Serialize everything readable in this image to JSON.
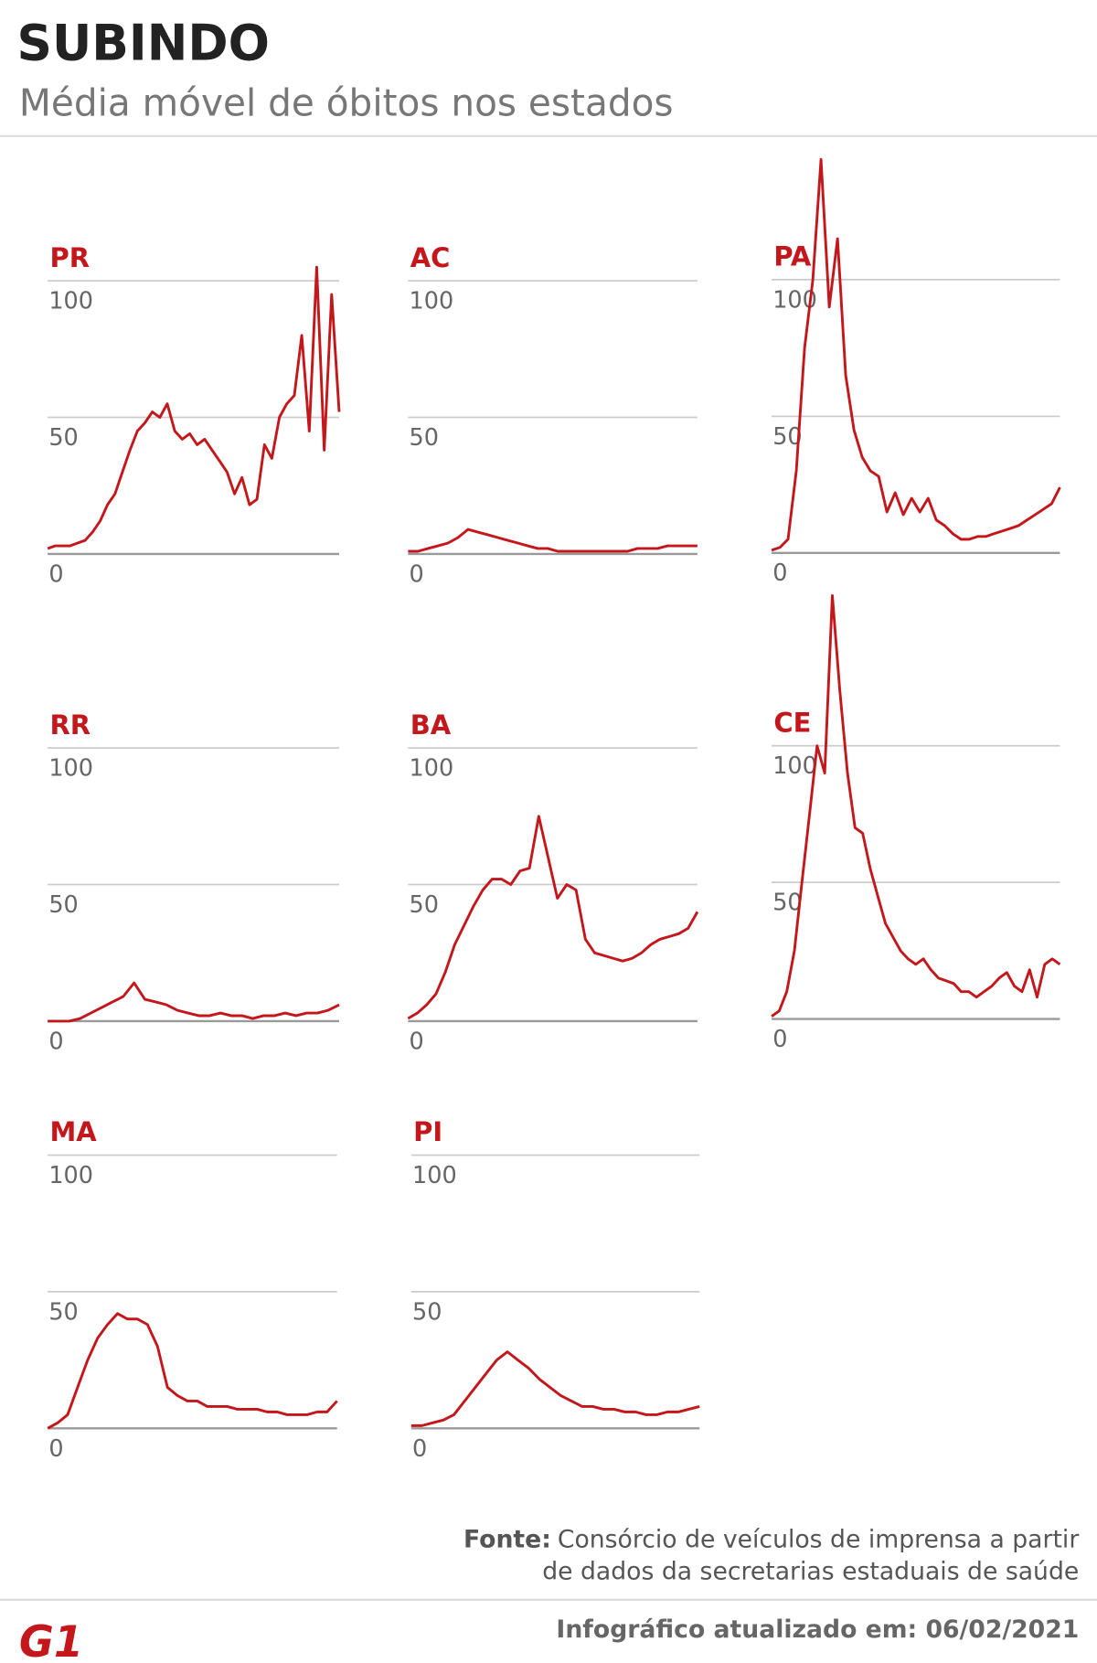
{
  "title": "SUBINDO",
  "subtitle": "Média móvel de óbitos nos estados",
  "source_label": "Fonte:",
  "source_lines": [
    "Consórcio de veículos de imprensa a partir",
    "de dados da secretarias estaduais de saúde"
  ],
  "updated": "Infográfico atualizado em: 06/02/2021",
  "logo": "G1",
  "chart_data": [
    {
      "type": "line",
      "title": "PR",
      "color": "#c4171b",
      "ylim": [
        0,
        100
      ],
      "yticks": [
        0,
        50,
        100
      ],
      "values": [
        2,
        3,
        3,
        3,
        4,
        5,
        8,
        12,
        18,
        22,
        30,
        38,
        45,
        48,
        52,
        50,
        55,
        45,
        42,
        44,
        40,
        42,
        38,
        34,
        30,
        22,
        28,
        18,
        20,
        40,
        35,
        50,
        55,
        58,
        80,
        45,
        105,
        38,
        95,
        52
      ]
    },
    {
      "type": "line",
      "title": "AC",
      "color": "#c4171b",
      "ylim": [
        0,
        100
      ],
      "yticks": [
        0,
        50,
        100
      ],
      "values": [
        1,
        1,
        2,
        3,
        4,
        6,
        9,
        8,
        7,
        6,
        5,
        4,
        3,
        2,
        2,
        1,
        1,
        1,
        1,
        1,
        1,
        1,
        1,
        2,
        2,
        2,
        3,
        3,
        3,
        3
      ]
    },
    {
      "type": "line",
      "title": "PA",
      "color": "#c4171b",
      "ylim": [
        0,
        100
      ],
      "yticks": [
        0,
        50,
        100
      ],
      "values": [
        1,
        2,
        5,
        30,
        75,
        100,
        144,
        90,
        115,
        65,
        45,
        35,
        30,
        28,
        15,
        22,
        14,
        20,
        15,
        20,
        12,
        10,
        7,
        5,
        5,
        6,
        6,
        7,
        8,
        9,
        10,
        12,
        14,
        16,
        18,
        24
      ]
    },
    {
      "type": "line",
      "title": "RR",
      "color": "#c4171b",
      "ylim": [
        0,
        100
      ],
      "yticks": [
        0,
        50,
        100
      ],
      "values": [
        0,
        0,
        0,
        1,
        3,
        5,
        7,
        9,
        14,
        8,
        7,
        6,
        4,
        3,
        2,
        2,
        3,
        2,
        2,
        1,
        2,
        2,
        3,
        2,
        3,
        3,
        4,
        6
      ]
    },
    {
      "type": "line",
      "title": "BA",
      "color": "#c4171b",
      "ylim": [
        0,
        100
      ],
      "yticks": [
        0,
        50,
        100
      ],
      "values": [
        1,
        3,
        6,
        10,
        18,
        28,
        35,
        42,
        48,
        52,
        52,
        50,
        55,
        56,
        75,
        60,
        45,
        50,
        48,
        30,
        25,
        24,
        23,
        22,
        23,
        25,
        28,
        30,
        31,
        32,
        34,
        40
      ]
    },
    {
      "type": "line",
      "title": "CE",
      "color": "#c4171b",
      "ylim": [
        0,
        100
      ],
      "yticks": [
        0,
        50,
        100
      ],
      "values": [
        1,
        3,
        10,
        25,
        50,
        75,
        100,
        90,
        155,
        120,
        90,
        70,
        68,
        55,
        45,
        35,
        30,
        25,
        22,
        20,
        22,
        18,
        15,
        14,
        13,
        10,
        10,
        8,
        10,
        12,
        15,
        17,
        12,
        10,
        18,
        8,
        20,
        22,
        20
      ]
    },
    {
      "type": "line",
      "title": "MA",
      "color": "#c4171b",
      "ylim": [
        0,
        100
      ],
      "yticks": [
        0,
        50,
        100
      ],
      "values": [
        0,
        2,
        5,
        15,
        25,
        33,
        38,
        42,
        40,
        40,
        38,
        30,
        15,
        12,
        10,
        10,
        8,
        8,
        8,
        7,
        7,
        7,
        6,
        6,
        5,
        5,
        5,
        6,
        6,
        10
      ]
    },
    {
      "type": "line",
      "title": "PI",
      "color": "#c4171b",
      "ylim": [
        0,
        100
      ],
      "yticks": [
        0,
        50,
        100
      ],
      "values": [
        1,
        1,
        2,
        3,
        5,
        10,
        15,
        20,
        25,
        28,
        25,
        22,
        18,
        15,
        12,
        10,
        8,
        8,
        7,
        7,
        6,
        6,
        5,
        5,
        6,
        6,
        7,
        8
      ]
    }
  ]
}
